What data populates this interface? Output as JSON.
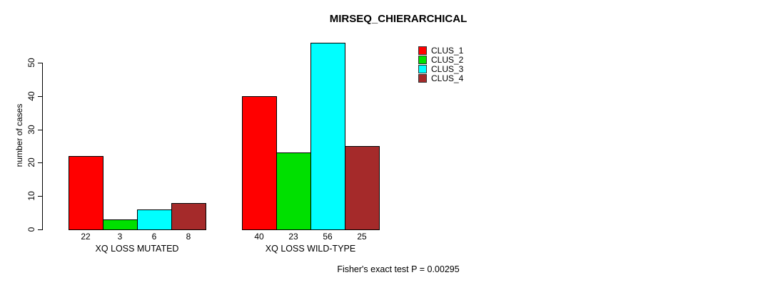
{
  "title": "MIRSEQ_CHIERARCHICAL",
  "ylabel": "number of cases",
  "footnote": "Fisher's exact test P = 0.00295",
  "chart_data": {
    "type": "bar",
    "title": "MIRSEQ_CHIERARCHICAL",
    "xlabel": "",
    "ylabel": "number of cases",
    "categories": [
      "XQ LOSS MUTATED",
      "XQ LOSS WILD-TYPE"
    ],
    "series": [
      {
        "name": "CLUS_1",
        "color": "#ff0000",
        "values": [
          22,
          40
        ]
      },
      {
        "name": "CLUS_2",
        "color": "#00e000",
        "values": [
          3,
          23
        ]
      },
      {
        "name": "CLUS_3",
        "color": "#00ffff",
        "values": [
          6,
          56
        ]
      },
      {
        "name": "CLUS_4",
        "color": "#a52a2a",
        "values": [
          8,
          25
        ]
      }
    ],
    "bar_value_labels": [
      [
        "22",
        "3",
        "6",
        "8"
      ],
      [
        "40",
        "23",
        "56",
        "25"
      ]
    ],
    "yticks": [
      0,
      10,
      20,
      30,
      40,
      50
    ],
    "ylim": [
      0,
      56
    ],
    "grid": false,
    "legend_position": "top-right",
    "legend_entries": [
      "CLUS_1",
      "CLUS_2",
      "CLUS_3",
      "CLUS_4"
    ],
    "annotation": "Fisher's exact test P = 0.00295"
  },
  "colors": {
    "background": "#ffffff",
    "axis": "#000000",
    "bar_border": "#000000",
    "text": "#000000"
  }
}
